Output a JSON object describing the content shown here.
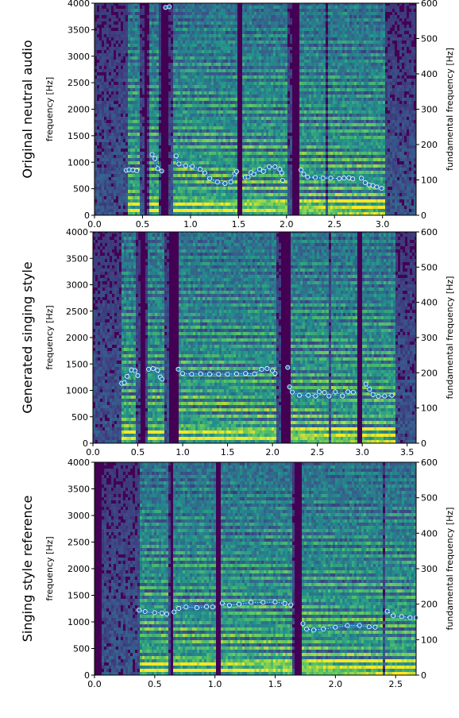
{
  "chart_data": [
    {
      "type": "heatmap",
      "row_label": "Original neutral audio",
      "ylabel_left": "frequency [Hz]",
      "ylabel_right": "fundamental frequency [Hz]",
      "xlim": [
        0,
        3.35
      ],
      "ylim_left": [
        0,
        4000
      ],
      "ylim_right": [
        0,
        600
      ],
      "x_ticks": [
        0.0,
        0.5,
        1.0,
        1.5,
        2.0,
        2.5,
        3.0
      ],
      "x_tick_labels": [
        "0.0",
        "0.5",
        "1.0",
        "1.5",
        "2.0",
        "2.5",
        "3.0"
      ],
      "y_ticks_left": [
        0,
        500,
        1000,
        1500,
        2000,
        2500,
        3000,
        3500,
        4000
      ],
      "y_tick_labels_left": [
        "0",
        "500",
        "1000",
        "1500",
        "2000",
        "2500",
        "3000",
        "3500",
        "4000"
      ],
      "y_ticks_right": [
        0,
        100,
        200,
        300,
        400,
        500,
        600
      ],
      "y_tick_labels_right": [
        "0",
        "100",
        "200",
        "300",
        "400",
        "500",
        "600"
      ],
      "colormap": [
        "#440154",
        "#3b528b",
        "#21918c",
        "#5ec962",
        "#fde725"
      ],
      "f0_color": "#1f77b4",
      "voiced_segments": [
        [
          0.34,
          0.46
        ],
        [
          0.55,
          0.68
        ],
        [
          0.82,
          1.48
        ],
        [
          1.53,
          2.0
        ],
        [
          2.13,
          2.62
        ],
        [
          2.63,
          3.02
        ]
      ],
      "gaps": [
        [
          0.52,
          0.56
        ],
        [
          0.7,
          0.76
        ],
        [
          1.5,
          1.53
        ],
        [
          2.05,
          2.13
        ],
        [
          2.4,
          2.43
        ]
      ],
      "f0_contour": [
        [
          [
            0.33,
            127
          ],
          [
            0.36,
            129
          ],
          [
            0.4,
            128
          ],
          [
            0.44,
            126
          ]
        ],
        [
          [
            0.6,
            172
          ],
          [
            0.63,
            160
          ],
          [
            0.66,
            132
          ],
          [
            0.7,
            125
          ]
        ],
        [
          [
            0.74,
            588
          ],
          [
            0.78,
            590
          ]
        ],
        [
          [
            0.85,
            168
          ],
          [
            0.88,
            145
          ],
          [
            0.95,
            140
          ],
          [
            1.02,
            138
          ],
          [
            1.1,
            130
          ],
          [
            1.15,
            120
          ],
          [
            1.2,
            104
          ],
          [
            1.28,
            94
          ],
          [
            1.36,
            90
          ],
          [
            1.42,
            94
          ],
          [
            1.46,
            118
          ],
          [
            1.48,
            124
          ]
        ],
        [
          [
            1.57,
            107
          ],
          [
            1.6,
            108
          ],
          [
            1.63,
            121
          ],
          [
            1.66,
            116
          ],
          [
            1.72,
            130
          ],
          [
            1.76,
            124
          ],
          [
            1.82,
            137
          ],
          [
            1.88,
            137
          ],
          [
            1.93,
            130
          ],
          [
            1.95,
            120
          ]
        ],
        [
          [
            1.96,
            99
          ]
        ],
        [
          [
            2.15,
            128
          ],
          [
            2.18,
            116
          ],
          [
            2.22,
            108
          ],
          [
            2.3,
            107
          ],
          [
            2.38,
            105
          ],
          [
            2.46,
            105
          ],
          [
            2.55,
            104
          ],
          [
            2.6,
            105
          ],
          [
            2.65,
            106
          ],
          [
            2.69,
            103
          ]
        ],
        [
          [
            2.78,
            105
          ],
          [
            2.82,
            92
          ],
          [
            2.86,
            86
          ],
          [
            2.9,
            84
          ],
          [
            2.94,
            80
          ],
          [
            2.99,
            76
          ]
        ]
      ]
    },
    {
      "type": "heatmap",
      "row_label": "Generated singing style",
      "ylabel_left": "frequency [Hz]",
      "ylabel_right": "fundamental frequency [Hz]",
      "xlim": [
        0,
        3.6
      ],
      "ylim_left": [
        0,
        4000
      ],
      "ylim_right": [
        0,
        600
      ],
      "x_ticks": [
        0.0,
        0.5,
        1.0,
        1.5,
        2.0,
        2.5,
        3.0,
        3.5
      ],
      "x_tick_labels": [
        "0.0",
        "0.5",
        "1.0",
        "1.5",
        "2.0",
        "2.5",
        "3.0",
        "3.5"
      ],
      "y_ticks_left": [
        0,
        500,
        1000,
        1500,
        2000,
        2500,
        3000,
        3500,
        4000
      ],
      "y_tick_labels_left": [
        "0",
        "500",
        "1000",
        "1500",
        "2000",
        "2500",
        "3000",
        "3500",
        "4000"
      ],
      "y_ticks_right": [
        0,
        100,
        200,
        300,
        400,
        500,
        600
      ],
      "y_tick_labels_right": [
        "0",
        "100",
        "200",
        "300",
        "400",
        "500",
        "600"
      ],
      "colormap": [
        "#440154",
        "#3b528b",
        "#21918c",
        "#5ec962",
        "#fde725"
      ],
      "f0_color": "#1f77b4",
      "voiced_segments": [
        [
          0.33,
          0.48
        ],
        [
          0.6,
          0.8
        ],
        [
          0.95,
          2.05
        ],
        [
          2.2,
          2.62
        ],
        [
          2.65,
          2.95
        ],
        [
          3.0,
          3.35
        ]
      ],
      "gaps": [
        [
          0.52,
          0.58
        ],
        [
          0.85,
          0.95
        ],
        [
          2.1,
          2.2
        ],
        [
          2.95,
          3.0
        ]
      ],
      "f0_contour": [
        [
          [
            0.32,
            170
          ],
          [
            0.35,
            172
          ],
          [
            0.38,
            190
          ],
          [
            0.43,
            208
          ],
          [
            0.47,
            206
          ],
          [
            0.5,
            192
          ]
        ],
        [
          [
            0.62,
            210
          ],
          [
            0.67,
            212
          ],
          [
            0.72,
            207
          ],
          [
            0.75,
            188
          ],
          [
            0.77,
            182
          ]
        ],
        [
          [
            0.95,
            210
          ],
          [
            1.0,
            198
          ],
          [
            1.1,
            196
          ],
          [
            1.2,
            197
          ],
          [
            1.3,
            196
          ],
          [
            1.4,
            196
          ],
          [
            1.5,
            196
          ],
          [
            1.6,
            197
          ],
          [
            1.7,
            198
          ],
          [
            1.8,
            197
          ],
          [
            1.88,
            210
          ],
          [
            1.94,
            212
          ],
          [
            2.0,
            206
          ],
          [
            2.03,
            198
          ]
        ],
        [
          [
            2.17,
            215
          ]
        ],
        [
          [
            2.19,
            160
          ],
          [
            2.22,
            145
          ],
          [
            2.3,
            136
          ],
          [
            2.4,
            136
          ],
          [
            2.48,
            134
          ],
          [
            2.52,
            146
          ],
          [
            2.58,
            144
          ],
          [
            2.63,
            134
          ],
          [
            2.7,
            146
          ],
          [
            2.78,
            134
          ],
          [
            2.84,
            146
          ],
          [
            2.9,
            145
          ]
        ],
        [
          [
            3.04,
            168
          ],
          [
            3.08,
            153
          ],
          [
            3.12,
            138
          ],
          [
            3.18,
            133
          ],
          [
            3.25,
            134
          ],
          [
            3.33,
            136
          ]
        ]
      ]
    },
    {
      "type": "heatmap",
      "row_label": "Singing style reference",
      "ylabel_left": "frequency [Hz]",
      "ylabel_right": "fundamental frequency [Hz]",
      "xlim": [
        0,
        2.67
      ],
      "ylim_left": [
        0,
        4000
      ],
      "ylim_right": [
        0,
        600
      ],
      "x_ticks": [
        0.0,
        0.5,
        1.0,
        1.5,
        2.0,
        2.5
      ],
      "x_tick_labels": [
        "0.0",
        "0.5",
        "1.0",
        "1.5",
        "2.0",
        "2.5"
      ],
      "y_ticks_left": [
        0,
        500,
        1000,
        1500,
        2000,
        2500,
        3000,
        3500,
        4000
      ],
      "y_tick_labels_left": [
        "0",
        "500",
        "1000",
        "1500",
        "2000",
        "2500",
        "3000",
        "3500",
        "4000"
      ],
      "y_ticks_right": [
        0,
        100,
        200,
        300,
        400,
        500,
        600
      ],
      "y_tick_labels_right": [
        "0",
        "100",
        "200",
        "300",
        "400",
        "500",
        "600"
      ],
      "colormap": [
        "#440154",
        "#3b528b",
        "#21918c",
        "#5ec962",
        "#fde725"
      ],
      "f0_color": "#1f77b4",
      "voiced_segments": [
        [
          0.37,
          0.62
        ],
        [
          0.65,
          1.0
        ],
        [
          1.05,
          1.65
        ],
        [
          1.72,
          2.4
        ],
        [
          2.42,
          2.67
        ]
      ],
      "gaps": [
        [
          0.0,
          0.05
        ],
        [
          0.63,
          0.66
        ],
        [
          1.0,
          1.05
        ],
        [
          1.67,
          1.72
        ]
      ],
      "f0_contour": [
        [
          [
            0.37,
            183
          ],
          [
            0.42,
            179
          ],
          [
            0.5,
            176
          ],
          [
            0.56,
            175
          ],
          [
            0.6,
            172
          ]
        ],
        [
          [
            0.66,
            178
          ],
          [
            0.7,
            188
          ],
          [
            0.76,
            192
          ],
          [
            0.85,
            190
          ],
          [
            0.93,
            193
          ],
          [
            0.98,
            192
          ]
        ],
        [
          [
            1.06,
            203
          ],
          [
            1.12,
            197
          ],
          [
            1.2,
            200
          ],
          [
            1.3,
            205
          ],
          [
            1.4,
            205
          ],
          [
            1.5,
            206
          ],
          [
            1.58,
            202
          ],
          [
            1.63,
            198
          ]
        ],
        [
          [
            1.73,
            145
          ]
        ],
        [
          [
            1.76,
            130
          ],
          [
            1.82,
            127
          ],
          [
            1.9,
            130
          ],
          [
            2.0,
            135
          ],
          [
            2.1,
            140
          ],
          [
            2.2,
            140
          ],
          [
            2.28,
            136
          ],
          [
            2.33,
            135
          ]
        ],
        [
          [
            2.43,
            180
          ],
          [
            2.48,
            167
          ],
          [
            2.55,
            165
          ],
          [
            2.62,
            162
          ],
          [
            2.67,
            162
          ]
        ]
      ]
    }
  ]
}
